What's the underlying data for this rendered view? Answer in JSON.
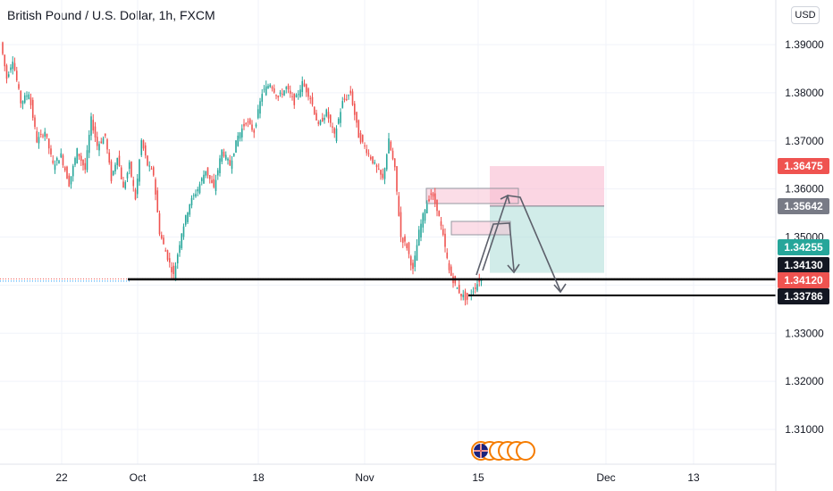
{
  "header": {
    "title": "British Pound / U.S. Dollar, 1h, FXCM",
    "currency": "USD"
  },
  "colors": {
    "up": "#26a69a",
    "down": "#ef5350",
    "grid": "#f0f3fa",
    "target_zone": "#b2dfdb",
    "stop_zone": "#f8bbd0",
    "price_label_red": "#ef5350",
    "price_label_grey": "#787b86",
    "price_label_green": "#26a69a",
    "price_label_black": "#131722"
  },
  "chart_data": {
    "type": "candlestick",
    "instrument": "British Pound / U.S. Dollar",
    "interval": "1h",
    "source": "FXCM",
    "y_ticks": [
      "1.39000",
      "1.38000",
      "1.37000",
      "1.36000",
      "1.35000",
      "1.34000",
      "1.33000",
      "1.32000",
      "1.31000"
    ],
    "ylim": [
      1.3,
      1.395
    ],
    "x_ticks": [
      "22",
      "Oct",
      "18",
      "Nov",
      "15",
      "Dec",
      "13"
    ],
    "price_path": [
      [
        0,
        1.3905
      ],
      [
        3,
        1.383
      ],
      [
        6,
        1.387
      ],
      [
        10,
        1.378
      ],
      [
        14,
        1.38
      ],
      [
        18,
        1.37
      ],
      [
        22,
        1.372
      ],
      [
        26,
        1.365
      ],
      [
        30,
        1.367
      ],
      [
        34,
        1.361
      ],
      [
        38,
        1.368
      ],
      [
        42,
        1.364
      ],
      [
        45,
        1.3745
      ],
      [
        48,
        1.369
      ],
      [
        52,
        1.371
      ],
      [
        55,
        1.362
      ],
      [
        58,
        1.367
      ],
      [
        61,
        1.36
      ],
      [
        64,
        1.365
      ],
      [
        67,
        1.358
      ],
      [
        70,
        1.37
      ],
      [
        73,
        1.365
      ],
      [
        76,
        1.363
      ],
      [
        79,
        1.351
      ],
      [
        82,
        1.347
      ],
      [
        86,
        1.342
      ],
      [
        90,
        1.351
      ],
      [
        94,
        1.357
      ],
      [
        98,
        1.36
      ],
      [
        102,
        1.364
      ],
      [
        106,
        1.36
      ],
      [
        110,
        1.368
      ],
      [
        114,
        1.365
      ],
      [
        118,
        1.371
      ],
      [
        122,
        1.374
      ],
      [
        126,
        1.372
      ],
      [
        130,
        1.38
      ],
      [
        134,
        1.382
      ],
      [
        138,
        1.379
      ],
      [
        142,
        1.381
      ],
      [
        146,
        1.378
      ],
      [
        150,
        1.382
      ],
      [
        154,
        1.379
      ],
      [
        158,
        1.373
      ],
      [
        162,
        1.376
      ],
      [
        166,
        1.371
      ],
      [
        170,
        1.378
      ],
      [
        174,
        1.38
      ],
      [
        178,
        1.371
      ],
      [
        182,
        1.368
      ],
      [
        186,
        1.365
      ],
      [
        190,
        1.362
      ],
      [
        193,
        1.37
      ],
      [
        196,
        1.364
      ],
      [
        199,
        1.35
      ],
      [
        202,
        1.348
      ],
      [
        205,
        1.343
      ],
      [
        208,
        1.351
      ],
      [
        211,
        1.356
      ],
      [
        214,
        1.359
      ],
      [
        217,
        1.356
      ],
      [
        220,
        1.35
      ],
      [
        223,
        1.343
      ],
      [
        226,
        1.34
      ],
      [
        229,
        1.338
      ],
      [
        232,
        1.337
      ],
      [
        235,
        1.339
      ],
      [
        238,
        1.341
      ]
    ],
    "price_labels": [
      {
        "text": "1.36475",
        "style": "red"
      },
      {
        "text": "1.35642",
        "style": "grey"
      },
      {
        "text": "1.34255",
        "style": "green"
      },
      {
        "text": "1.34130",
        "style": "black"
      },
      {
        "text": "1.34120",
        "style": "red"
      },
      {
        "text": "1.33786",
        "style": "black"
      }
    ],
    "levels": [
      1.3412,
      1.3413,
      1.33786
    ],
    "position_tool": {
      "entry": 1.35642,
      "stop": 1.36475,
      "target": 1.34255
    }
  }
}
